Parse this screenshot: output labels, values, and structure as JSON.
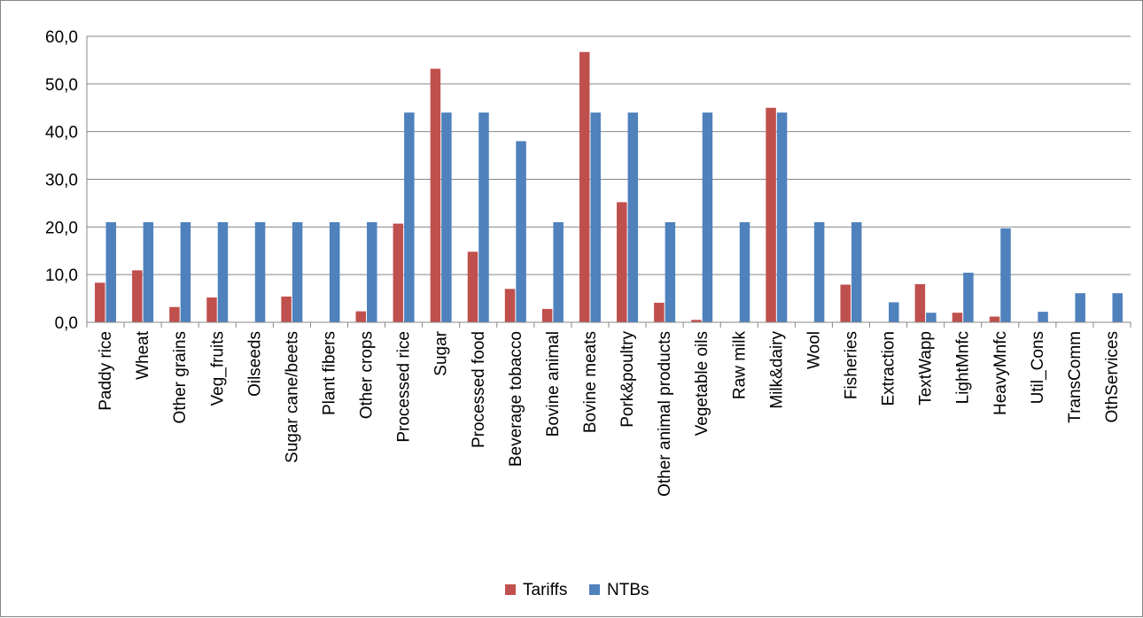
{
  "chart_data": {
    "type": "bar",
    "categories": [
      "Paddy rice",
      "Wheat",
      "Other grains",
      "Veg_fruits",
      "Oilseeds",
      "Sugar cane/beets",
      "Plant fibers",
      "Other crops",
      "Processed rice",
      "Sugar",
      "Processed food",
      "Beverage tobacco",
      "Bovine animal",
      "Bovine meats",
      "Pork&poultry",
      "Other animal products",
      "Vegetable oils",
      "Raw milk",
      "Milk&dairy",
      "Wool",
      "Fisheries",
      "Extraction",
      "TextWapp",
      "LightMnfc",
      "HeavyMnfc",
      "Util_Cons",
      "TransComm",
      "OthServices"
    ],
    "series": [
      {
        "name": "Tariffs",
        "color": "#c0504d",
        "values": [
          8.3,
          10.9,
          3.2,
          5.2,
          0.0,
          5.4,
          0.0,
          2.3,
          20.7,
          53.2,
          14.8,
          7.0,
          2.8,
          56.7,
          25.2,
          4.1,
          0.5,
          0.0,
          45.0,
          0.0,
          7.9,
          0.0,
          8.0,
          2.0,
          1.2,
          0.0,
          0.0,
          0.0
        ]
      },
      {
        "name": "NTBs",
        "color": "#4f81bd",
        "values": [
          21.0,
          21.0,
          21.0,
          21.0,
          21.0,
          21.0,
          21.0,
          21.0,
          44.0,
          44.0,
          44.0,
          38.0,
          21.0,
          44.0,
          44.0,
          21.0,
          44.0,
          21.0,
          44.0,
          21.0,
          21.0,
          4.2,
          2.0,
          10.4,
          19.7,
          2.2,
          6.1,
          6.1
        ]
      }
    ],
    "title": "",
    "xlabel": "",
    "ylabel": "",
    "ylim": [
      0,
      60
    ],
    "yticks": [
      "0,0",
      "10,0",
      "20,0",
      "30,0",
      "40,0",
      "50,0",
      "60,0"
    ],
    "grid": true,
    "legend_position": "bottom"
  }
}
